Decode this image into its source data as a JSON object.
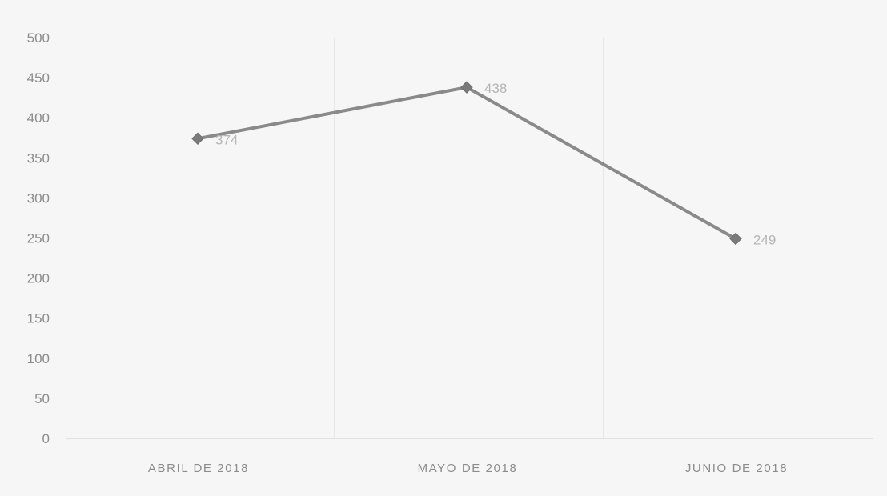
{
  "chart_data": {
    "type": "line",
    "categories": [
      "ABRIL DE 2018",
      "MAYO DE 2018",
      "JUNIO DE 2018"
    ],
    "series": [
      {
        "values": [
          374,
          438,
          249
        ],
        "color": "#8a8a8a",
        "marker": "diamond"
      }
    ],
    "ylim": [
      0,
      500
    ],
    "yticks": [
      0,
      50,
      100,
      150,
      200,
      250,
      300,
      350,
      400,
      450,
      500
    ],
    "data_labels": [
      "374",
      "438",
      "249"
    ],
    "grid": {
      "horizontal": false,
      "vertical": true
    },
    "legend": "none"
  }
}
